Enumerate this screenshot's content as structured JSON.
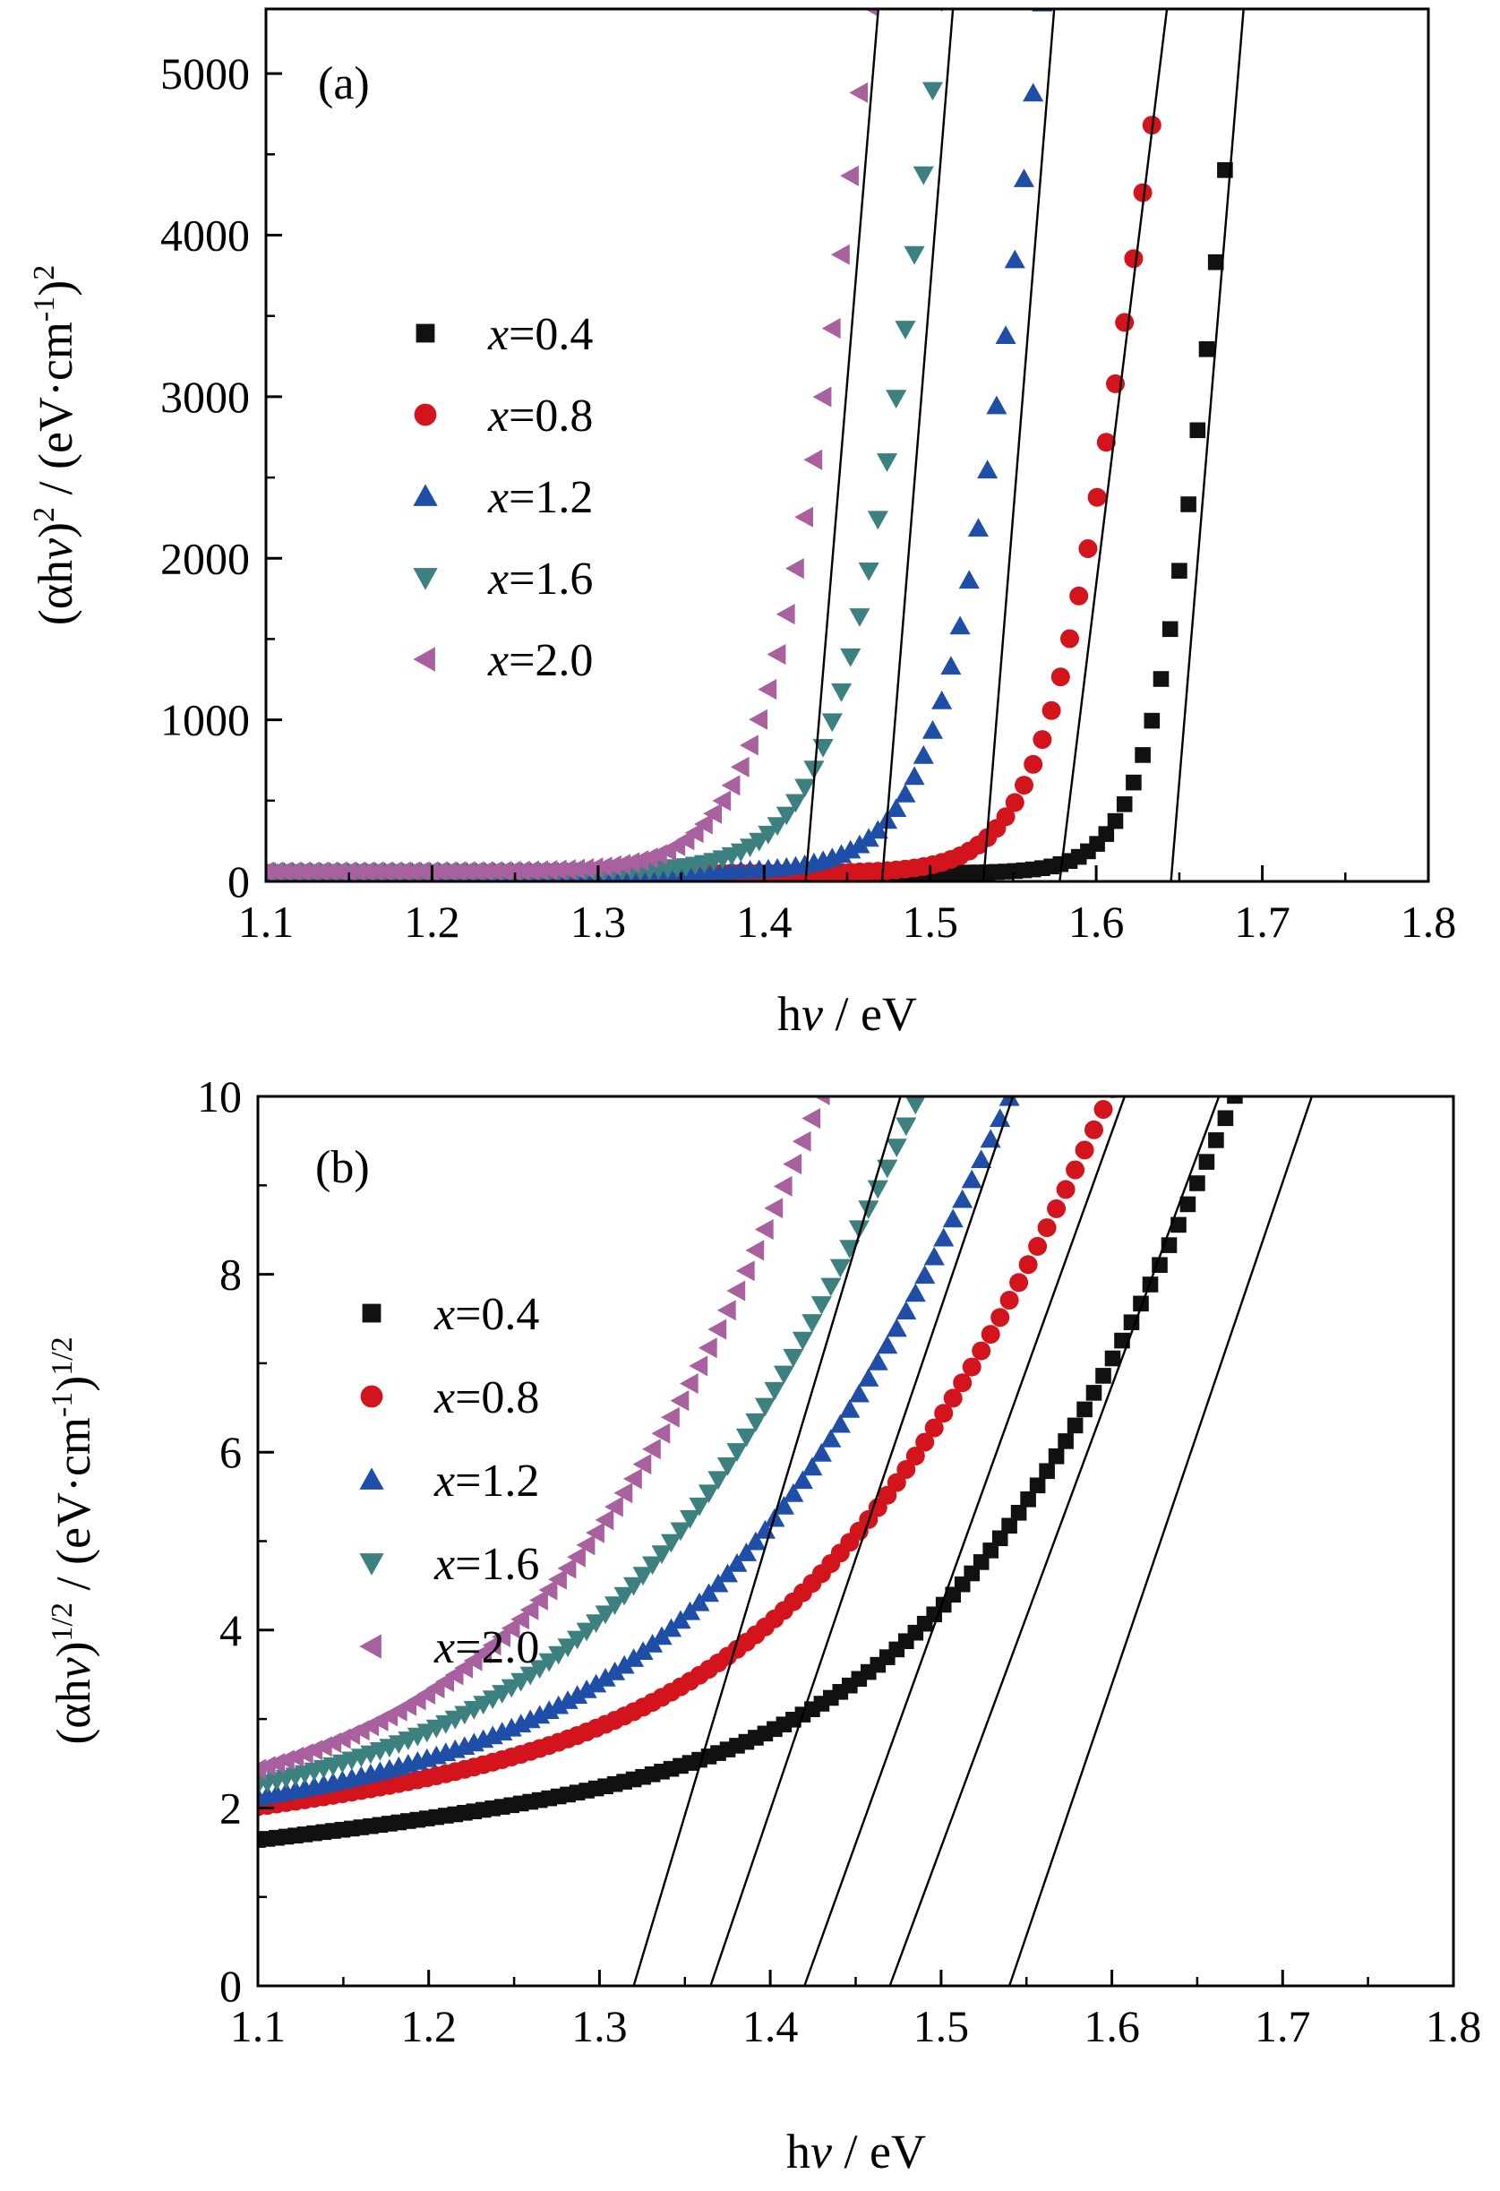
{
  "colors": {
    "x=0.4": "#111111",
    "x=0.8": "#d4141c",
    "x=1.2": "#1f4ea8",
    "x=1.6": "#3d8080",
    "x=2.0": "#a8609e",
    "fit_line": "#000000"
  },
  "chart_data": [
    {
      "type": "scatter",
      "panel_label": "(a)",
      "xlabel_parts": [
        "h",
        "v",
        " / eV"
      ],
      "ylabel_parts": [
        "(αh",
        "v",
        ")",
        "2",
        " / (eV·cm",
        "-1",
        ")",
        "2"
      ],
      "xlim": [
        1.1,
        1.8
      ],
      "ylim": [
        0,
        5400
      ],
      "xticks": [
        1.1,
        1.2,
        1.3,
        1.4,
        1.5,
        1.6,
        1.7,
        1.8
      ],
      "xtick_labels": [
        "1.1",
        "1.2",
        "1.3",
        "1.4",
        "1.5",
        "1.6",
        "1.7",
        "1.8"
      ],
      "yticks": [
        0,
        1000,
        2000,
        3000,
        4000,
        5000
      ],
      "ytick_labels": [
        "0",
        "1000",
        "2000",
        "3000",
        "4000",
        "5000"
      ],
      "legend_position": "center-left",
      "series": [
        {
          "name": "x=0.4",
          "marker": "square",
          "color_key": "x=0.4",
          "curve": {
            "baseline": 50,
            "bulk": 5,
            "edge": 1.645,
            "decay": 0.018,
            "scale": 1800
          },
          "xmax": 1.681,
          "fit": {
            "x0": 1.645,
            "x1": 1.687
          }
        },
        {
          "name": "x=0.8",
          "marker": "circle",
          "color_key": "x=0.8",
          "curve": {
            "baseline": 50,
            "bulk": 5,
            "edge": 1.58,
            "decay": 0.022,
            "scale": 1800
          },
          "xmax": 1.636,
          "fit": {
            "x0": 1.578,
            "x1": 1.64
          }
        },
        {
          "name": "x=1.2",
          "marker": "triangle-up",
          "color_key": "x=1.2",
          "curve": {
            "baseline": 55,
            "bulk": 5,
            "edge": 1.53,
            "decay": 0.025,
            "scale": 1800
          },
          "xmax": 1.57,
          "fit": {
            "x0": 1.532,
            "x1": 1.573
          }
        },
        {
          "name": "x=1.6",
          "marker": "triangle-down",
          "color_key": "x=1.6",
          "curve": {
            "baseline": 55,
            "bulk": 5,
            "edge": 1.47,
            "decay": 0.026,
            "scale": 1800
          },
          "xmax": 1.51,
          "fit": {
            "x0": 1.471,
            "x1": 1.512
          }
        },
        {
          "name": "x=2.0",
          "marker": "triangle-left",
          "color_key": "x=2.0",
          "curve": {
            "baseline": 60,
            "bulk": 5,
            "edge": 1.425,
            "decay": 0.026,
            "scale": 1800
          },
          "xmax": 1.467,
          "fit": {
            "x0": 1.425,
            "x1": 1.467
          }
        }
      ]
    },
    {
      "type": "scatter",
      "panel_label": "(b)",
      "xlabel_parts": [
        "h",
        "v",
        " / eV"
      ],
      "ylabel_parts": [
        "(αh",
        "v",
        ")",
        "1/2",
        " / (eV·cm",
        "-1",
        ")",
        "1/2"
      ],
      "xlim": [
        1.1,
        1.8
      ],
      "ylim": [
        0,
        10
      ],
      "xticks": [
        1.1,
        1.2,
        1.3,
        1.4,
        1.5,
        1.6,
        1.7,
        1.8
      ],
      "xtick_labels": [
        "1.1",
        "1.2",
        "1.3",
        "1.4",
        "1.5",
        "1.6",
        "1.7",
        "1.8"
      ],
      "yticks": [
        0,
        2,
        4,
        6,
        8,
        10
      ],
      "ytick_labels": [
        "0",
        "2",
        "4",
        "6",
        "8",
        "10"
      ],
      "legend_position": "center-left",
      "series": [
        {
          "name": "x=0.4",
          "marker": "square",
          "color_key": "x=0.4",
          "curve": {
            "baseline": 1.62,
            "bulk": 2.0,
            "edge": 1.565,
            "decay": 0.085,
            "scale": 3.2
          },
          "xmax": 1.7,
          "fit": {
            "x0": 1.54,
            "x1": 1.71
          }
        },
        {
          "name": "x=0.8",
          "marker": "circle",
          "color_key": "x=0.8",
          "curve": {
            "baseline": 1.95,
            "bulk": 2.0,
            "edge": 1.485,
            "decay": 0.09,
            "scale": 3.0
          },
          "xmax": 1.645,
          "fit": {
            "x0": 1.47,
            "x1": 1.655
          }
        },
        {
          "name": "x=1.2",
          "marker": "triangle-up",
          "color_key": "x=1.2",
          "curve": {
            "baseline": 2.0,
            "bulk": 2.0,
            "edge": 1.43,
            "decay": 0.09,
            "scale": 3.0
          },
          "xmax": 1.575,
          "fit": {
            "x0": 1.42,
            "x1": 1.6
          }
        },
        {
          "name": "x=1.6",
          "marker": "triangle-down",
          "color_key": "x=1.6",
          "curve": {
            "baseline": 2.05,
            "bulk": 2.0,
            "edge": 1.385,
            "decay": 0.09,
            "scale": 3.0
          },
          "xmax": 1.515,
          "fit": {
            "x0": 1.365,
            "x1": 1.535
          }
        },
        {
          "name": "x=2.0",
          "marker": "triangle-left",
          "color_key": "x=2.0",
          "curve": {
            "baseline": 2.1,
            "bulk": 2.0,
            "edge": 1.345,
            "decay": 0.088,
            "scale": 3.0
          },
          "xmax": 1.466,
          "fit": {
            "x0": 1.32,
            "x1": 1.47
          }
        }
      ]
    }
  ]
}
